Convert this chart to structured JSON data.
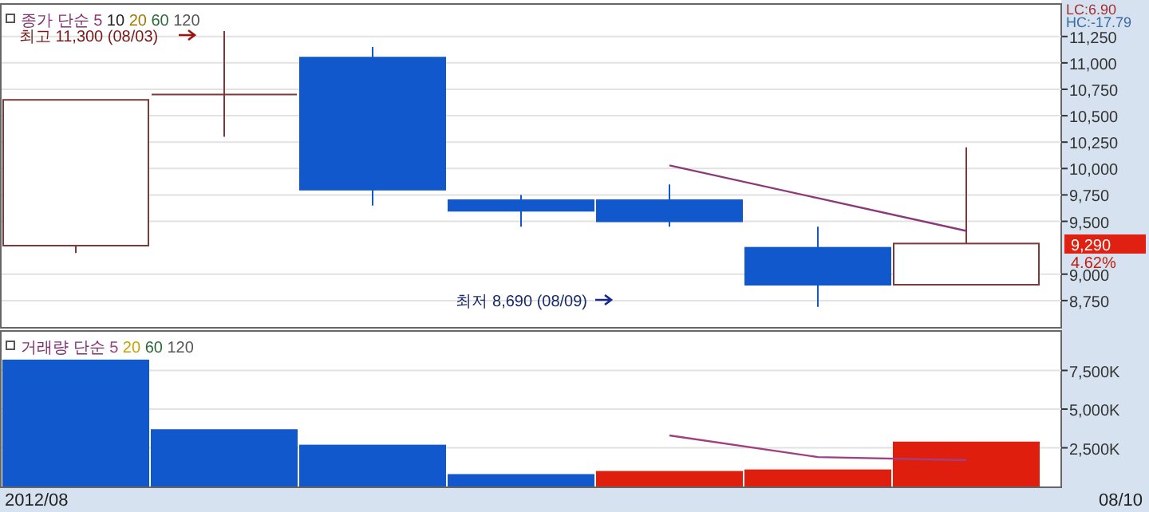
{
  "chart_data": [
    {
      "type": "candlestick",
      "categories": [
        null,
        null,
        null,
        null,
        null,
        null,
        null
      ],
      "ohlc": [
        [
          9270,
          10650,
          9200,
          10650
        ],
        [
          10700,
          11300,
          10300,
          10700
        ],
        [
          11050,
          11150,
          9650,
          9800
        ],
        [
          9700,
          9750,
          9450,
          9600
        ],
        [
          9700,
          9850,
          9450,
          9500
        ],
        [
          9250,
          9450,
          8690,
          8900
        ],
        [
          8900,
          10200,
          8900,
          9290
        ]
      ],
      "colors": [
        "#7a3a3a",
        "#7a3a3a",
        "#1158cc",
        "#1158cc",
        "#1158cc",
        "#1158cc",
        "#7a3a3a"
      ],
      "legend_title": "종가 단순",
      "legend": "top left",
      "series": [
        {
          "name": "5",
          "type": "line",
          "color": "#8a3a7a",
          "values": [
            null,
            null,
            null,
            null,
            10030,
            9720,
            9410
          ]
        },
        {
          "name": "10",
          "type": "line",
          "color": "#222222",
          "values": [
            null,
            null,
            null,
            null,
            null,
            null,
            null
          ]
        },
        {
          "name": "20",
          "type": "line",
          "color": "#a07a00",
          "values": [
            null,
            null,
            null,
            null,
            null,
            null,
            null
          ]
        },
        {
          "name": "60",
          "type": "line",
          "color": "#2a6a3a",
          "values": [
            null,
            null,
            null,
            null,
            null,
            null,
            null
          ]
        },
        {
          "name": "120",
          "type": "line",
          "color": "#555555",
          "values": [
            null,
            null,
            null,
            null,
            null,
            null,
            null
          ]
        }
      ],
      "ylim": [
        8500,
        11550
      ],
      "yticks": [
        {
          "value": 8750,
          "label": "8,750"
        },
        {
          "value": 9000,
          "label": "9,000"
        },
        {
          "value": 9500,
          "label": "9,500"
        },
        {
          "value": 9750,
          "label": "9,750"
        },
        {
          "value": 10000,
          "label": "10,000"
        },
        {
          "value": 10250,
          "label": "10,250"
        },
        {
          "value": 10500,
          "label": "10,500"
        },
        {
          "value": 10750,
          "label": "10,750"
        },
        {
          "value": 11000,
          "label": "11,000"
        },
        {
          "value": 11250,
          "label": "11,250"
        }
      ],
      "grid": "y",
      "annotations": [
        "최고 11,300 (08/03)",
        "최저 8,690 (08/09)",
        "9,290",
        "4.62%",
        "LC:6.90",
        "HC:-17.79"
      ]
    },
    {
      "type": "bar",
      "categories": [
        null,
        null,
        null,
        null,
        null,
        null,
        null
      ],
      "legend_title": "거래량 단순",
      "legend": "top left",
      "series": [
        {
          "type": "bar",
          "colors": [
            "#1158cc",
            "#1158cc",
            "#1158cc",
            "#1158cc",
            "#e01e0e",
            "#e01e0e",
            "#e01e0e"
          ],
          "values": [
            8200,
            3700,
            2700,
            800,
            1000,
            1100,
            2900
          ]
        },
        {
          "name": "5",
          "type": "line",
          "color": "#a04080",
          "values": [
            null,
            null,
            null,
            null,
            3300,
            1900,
            1700
          ]
        },
        {
          "name": "20",
          "type": "line",
          "color": "#c8a000",
          "values": [
            null,
            null,
            null,
            null,
            null,
            null,
            null
          ]
        },
        {
          "name": "60",
          "type": "line",
          "color": "#2a6a3a",
          "values": [
            null,
            null,
            null,
            null,
            null,
            null,
            null
          ]
        },
        {
          "name": "120",
          "type": "line",
          "color": "#555555",
          "values": [
            null,
            null,
            null,
            null,
            null,
            null,
            null
          ]
        }
      ],
      "ylim": [
        0,
        10000
      ],
      "yticks": [
        {
          "value": 2500,
          "label": "2,500K"
        },
        {
          "value": 5000,
          "label": "5,000K"
        },
        {
          "value": 7500,
          "label": "7,500K"
        }
      ],
      "grid": "y",
      "annotations": [
        "2012/08",
        "08/10"
      ]
    }
  ]
}
